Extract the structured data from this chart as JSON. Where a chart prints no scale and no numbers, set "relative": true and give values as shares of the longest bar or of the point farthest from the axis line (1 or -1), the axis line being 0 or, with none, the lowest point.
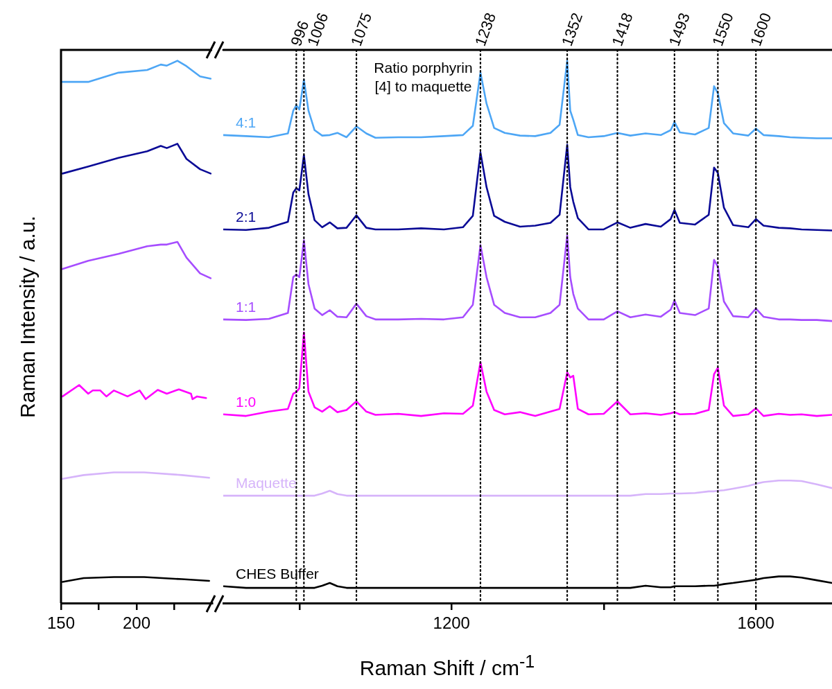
{
  "chart_data": [
    {
      "type": "line",
      "relative": true,
      "ylabel": "Raman Intensity / a.u.",
      "xlim": [
        150,
        250
      ],
      "xticks": [
        150,
        {
          "value": 175,
          "label": null
        },
        200,
        {
          "value": 225,
          "label": null
        }
      ],
      "series": [
        {
          "color": "#4da6f5",
          "x": [
            151,
            168,
            188,
            207,
            216,
            220,
            227,
            233,
            242,
            249
          ],
          "values": [
            0.961,
            0.961,
            0.978,
            0.983,
            0.993,
            0.991,
            1,
            0.99,
            0.971,
            0.967
          ]
        },
        {
          "color": "#0a0a96",
          "x": [
            151,
            168,
            188,
            207,
            216,
            220,
            227,
            233,
            242,
            249
          ],
          "values": [
            0.792,
            0.805,
            0.821,
            0.833,
            0.843,
            0.839,
            0.847,
            0.819,
            0.8,
            0.792
          ]
        },
        {
          "color": "#a64dff",
          "x": [
            151,
            168,
            188,
            207,
            216,
            220,
            227,
            233,
            242,
            249
          ],
          "values": [
            0.616,
            0.631,
            0.644,
            0.658,
            0.661,
            0.661,
            0.666,
            0.637,
            0.608,
            0.599
          ]
        },
        {
          "color": "#ff00ff",
          "x": [
            151,
            162,
            168,
            171,
            176,
            180,
            185,
            194,
            202,
            206,
            214,
            220,
            228,
            236,
            237,
            240,
            246
          ],
          "values": [
            0.381,
            0.402,
            0.386,
            0.392,
            0.392,
            0.381,
            0.392,
            0.381,
            0.392,
            0.376,
            0.393,
            0.386,
            0.394,
            0.386,
            0.376,
            0.381,
            0.378
          ]
        },
        {
          "color": "#d6b4fa",
          "x": [
            151,
            165,
            185,
            205,
            230,
            248
          ],
          "values": [
            0.229,
            0.236,
            0.241,
            0.241,
            0.236,
            0.231
          ]
        },
        {
          "color": "#000000",
          "x": [
            151,
            165,
            185,
            205,
            230,
            248
          ],
          "values": [
            0.039,
            0.046,
            0.048,
            0.048,
            0.044,
            0.041
          ]
        }
      ]
    },
    {
      "type": "line",
      "relative": true,
      "xlabel": "Raman Shift / cm$^{-1}$",
      "xlim": [
        900,
        1700
      ],
      "xticks": [
        {
          "value": 1000,
          "label": null
        },
        1200,
        {
          "value": 1400,
          "label": null
        },
        1600
      ],
      "annotations": [
        "Ratio porphyrin [4] to maquette"
      ],
      "ref_lines": [
        {
          "axis": "x",
          "value": 996,
          "label": "996",
          "color": "#000000",
          "line_style": "dotted"
        },
        {
          "axis": "x",
          "value": 1006,
          "label": "1006",
          "color": "#000000",
          "line_style": "dotted"
        },
        {
          "axis": "x",
          "value": 1075,
          "label": "1075",
          "color": "#000000",
          "line_style": "dotted"
        },
        {
          "axis": "x",
          "value": 1238,
          "label": "1238",
          "color": "#000000",
          "line_style": "dotted"
        },
        {
          "axis": "x",
          "value": 1352,
          "label": "1352",
          "color": "#000000",
          "line_style": "dotted"
        },
        {
          "axis": "x",
          "value": 1418,
          "label": "1418",
          "color": "#000000",
          "line_style": "dotted"
        },
        {
          "axis": "x",
          "value": 1493,
          "label": "1493",
          "color": "#000000",
          "line_style": "dotted"
        },
        {
          "axis": "x",
          "value": 1550,
          "label": "1550",
          "color": "#000000",
          "line_style": "dotted"
        },
        {
          "axis": "x",
          "value": 1600,
          "label": "1600",
          "color": "#000000",
          "line_style": "dotted"
        }
      ],
      "x": [
        900,
        930,
        960,
        985,
        992,
        996,
        1000,
        1006,
        1012,
        1020,
        1030,
        1040,
        1050,
        1062,
        1075,
        1088,
        1100,
        1130,
        1160,
        1190,
        1215,
        1228,
        1238,
        1246,
        1256,
        1270,
        1290,
        1310,
        1330,
        1342,
        1352,
        1356,
        1360,
        1366,
        1380,
        1400,
        1418,
        1435,
        1455,
        1475,
        1488,
        1493,
        1500,
        1520,
        1538,
        1545,
        1550,
        1558,
        1570,
        1590,
        1600,
        1610,
        1630,
        1645,
        1660,
        1680,
        1700
      ],
      "series": [
        {
          "name": "4:1",
          "color": "#4da6f5",
          "values": [
            0.863,
            0.861,
            0.859,
            0.866,
            0.908,
            0.918,
            0.91,
            0.965,
            0.908,
            0.872,
            0.862,
            0.863,
            0.867,
            0.859,
            0.879,
            0.866,
            0.858,
            0.859,
            0.859,
            0.861,
            0.863,
            0.88,
            0.978,
            0.921,
            0.876,
            0.867,
            0.862,
            0.861,
            0.867,
            0.882,
            1,
            0.908,
            0.891,
            0.863,
            0.859,
            0.861,
            0.867,
            0.862,
            0.866,
            0.863,
            0.872,
            0.887,
            0.868,
            0.864,
            0.876,
            0.953,
            0.94,
            0.885,
            0.866,
            0.862,
            0.875,
            0.863,
            0.861,
            0.859,
            0.858,
            0.857,
            0.857
          ]
        },
        {
          "name": "2:1",
          "color": "#0a0a96",
          "values": [
            0.689,
            0.688,
            0.692,
            0.703,
            0.757,
            0.765,
            0.761,
            0.826,
            0.754,
            0.706,
            0.693,
            0.702,
            0.691,
            0.692,
            0.715,
            0.692,
            0.689,
            0.689,
            0.691,
            0.689,
            0.693,
            0.714,
            0.831,
            0.767,
            0.714,
            0.703,
            0.694,
            0.696,
            0.701,
            0.716,
            0.845,
            0.767,
            0.74,
            0.71,
            0.689,
            0.689,
            0.702,
            0.692,
            0.699,
            0.694,
            0.708,
            0.725,
            0.701,
            0.698,
            0.716,
            0.803,
            0.793,
            0.729,
            0.697,
            0.693,
            0.708,
            0.696,
            0.692,
            0.691,
            0.689,
            0.688,
            0.687
          ]
        },
        {
          "name": "1:1",
          "color": "#a64dff",
          "values": [
            0.523,
            0.522,
            0.524,
            0.535,
            0.601,
            0.606,
            0.601,
            0.669,
            0.588,
            0.543,
            0.531,
            0.54,
            0.528,
            0.527,
            0.552,
            0.529,
            0.523,
            0.523,
            0.524,
            0.523,
            0.527,
            0.55,
            0.66,
            0.601,
            0.55,
            0.535,
            0.527,
            0.527,
            0.535,
            0.55,
            0.678,
            0.601,
            0.57,
            0.543,
            0.523,
            0.523,
            0.538,
            0.527,
            0.532,
            0.528,
            0.541,
            0.558,
            0.535,
            0.531,
            0.543,
            0.633,
            0.62,
            0.556,
            0.529,
            0.527,
            0.543,
            0.528,
            0.523,
            0.523,
            0.522,
            0.522,
            0.52
          ]
        },
        {
          "name": "1:0",
          "color": "#ff00ff",
          "values": [
            0.348,
            0.345,
            0.353,
            0.358,
            0.386,
            0.389,
            0.396,
            0.499,
            0.39,
            0.361,
            0.353,
            0.363,
            0.352,
            0.356,
            0.372,
            0.353,
            0.347,
            0.349,
            0.345,
            0.35,
            0.349,
            0.364,
            0.444,
            0.39,
            0.356,
            0.348,
            0.352,
            0.345,
            0.353,
            0.358,
            0.425,
            0.416,
            0.419,
            0.358,
            0.348,
            0.349,
            0.372,
            0.348,
            0.35,
            0.347,
            0.35,
            0.352,
            0.348,
            0.349,
            0.356,
            0.422,
            0.434,
            0.364,
            0.345,
            0.348,
            0.359,
            0.345,
            0.349,
            0.347,
            0.348,
            0.345,
            0.347
          ]
        },
        {
          "name": "Maquette",
          "color": "#d6b4fa",
          "values": [
            0.198,
            0.198,
            0.198,
            0.198,
            0.198,
            0.198,
            0.198,
            0.198,
            0.198,
            0.198,
            0.202,
            0.207,
            0.201,
            0.198,
            0.198,
            0.198,
            0.198,
            0.198,
            0.198,
            0.198,
            0.198,
            0.198,
            0.198,
            0.198,
            0.198,
            0.198,
            0.198,
            0.198,
            0.198,
            0.198,
            0.198,
            0.198,
            0.198,
            0.198,
            0.198,
            0.198,
            0.198,
            0.198,
            0.201,
            0.201,
            0.202,
            0.202,
            0.202,
            0.203,
            0.206,
            0.206,
            0.207,
            0.208,
            0.211,
            0.216,
            0.22,
            0.223,
            0.226,
            0.226,
            0.225,
            0.219,
            0.212
          ]
        },
        {
          "name": "CHES Buffer",
          "color": "#000000",
          "values": [
            0.031,
            0.028,
            0.028,
            0.028,
            0.028,
            0.028,
            0.028,
            0.028,
            0.028,
            0.028,
            0.032,
            0.037,
            0.031,
            0.028,
            0.028,
            0.028,
            0.028,
            0.028,
            0.028,
            0.028,
            0.028,
            0.028,
            0.028,
            0.028,
            0.028,
            0.028,
            0.028,
            0.028,
            0.028,
            0.028,
            0.028,
            0.028,
            0.028,
            0.028,
            0.028,
            0.028,
            0.028,
            0.028,
            0.032,
            0.029,
            0.029,
            0.031,
            0.031,
            0.031,
            0.032,
            0.032,
            0.033,
            0.035,
            0.037,
            0.041,
            0.043,
            0.046,
            0.049,
            0.049,
            0.047,
            0.042,
            0.037
          ]
        }
      ]
    }
  ]
}
